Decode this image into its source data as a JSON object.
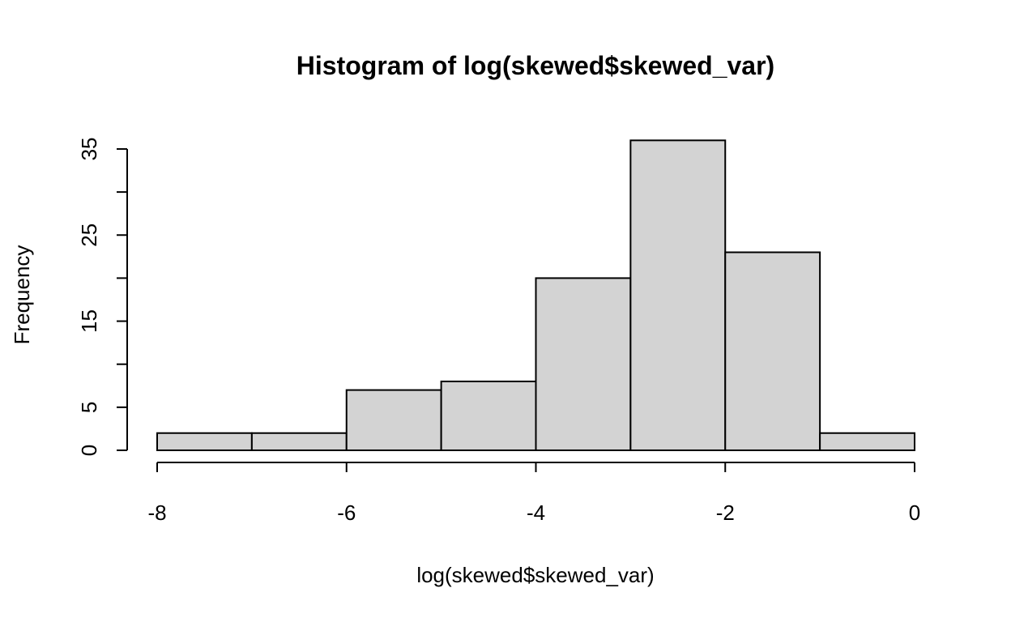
{
  "chart_data": {
    "type": "bar",
    "title": "Histogram of log(skewed$skewed_var)",
    "xlabel": "log(skewed$skewed_var)",
    "ylabel": "Frequency",
    "bins": [
      {
        "x0": -8,
        "x1": -7,
        "count": 2
      },
      {
        "x0": -7,
        "x1": -6,
        "count": 2
      },
      {
        "x0": -6,
        "x1": -5,
        "count": 7
      },
      {
        "x0": -5,
        "x1": -4,
        "count": 8
      },
      {
        "x0": -4,
        "x1": -3,
        "count": 20
      },
      {
        "x0": -3,
        "x1": -2,
        "count": 36
      },
      {
        "x0": -2,
        "x1": -1,
        "count": 23
      },
      {
        "x0": -1,
        "x1": 0,
        "count": 2
      }
    ],
    "x_ticks": [
      -8,
      -6,
      -4,
      -2,
      0
    ],
    "x_tick_labels": [
      "-8",
      "-6",
      "-4",
      "-2",
      "0"
    ],
    "y_ticks": [
      0,
      5,
      10,
      15,
      20,
      25,
      30,
      35
    ],
    "y_tick_labels": [
      "0",
      "5",
      "",
      "15",
      "",
      "25",
      "",
      "35"
    ],
    "xlim": [
      -8,
      0
    ],
    "ylim": [
      0,
      36
    ],
    "grid": false,
    "bar_fill": "#d3d3d3",
    "bar_stroke": "#000000"
  }
}
